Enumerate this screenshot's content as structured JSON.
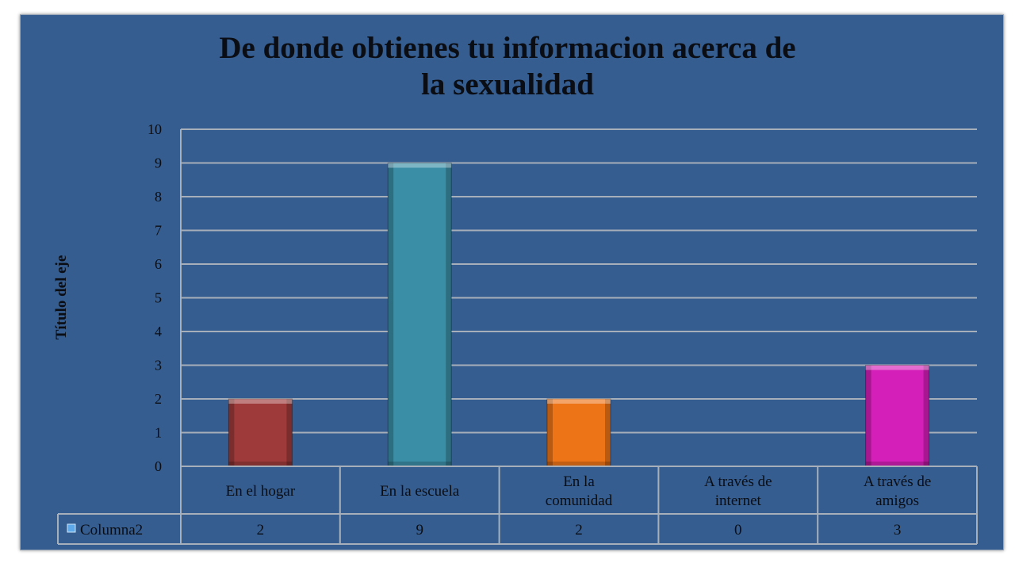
{
  "chart_data": {
    "type": "bar",
    "title_lines": [
      "De donde obtienes tu informacion acerca de",
      "la sexualidad"
    ],
    "ylabel": "Título del eje",
    "xlabel": "",
    "categories": [
      "En el hogar",
      "En la escuela",
      "En la comunidad",
      "A través de internet",
      "A través de amigos"
    ],
    "category_label_lines": [
      [
        "En el hogar"
      ],
      [
        "En la escuela"
      ],
      [
        "En la",
        "comunidad"
      ],
      [
        "A través de",
        "internet"
      ],
      [
        "A través de",
        "amigos"
      ]
    ],
    "series": [
      {
        "name": "Columna2",
        "values": [
          2,
          9,
          2,
          0,
          3
        ]
      }
    ],
    "data_table_values": [
      "2",
      "9",
      "2",
      "0",
      "3"
    ],
    "bar_colors": [
      "#9e3a3a",
      "#3a8ea6",
      "#ee7418",
      "#7f7f7f",
      "#d41fb8"
    ],
    "yticks": [
      0,
      1,
      2,
      3,
      4,
      5,
      6,
      7,
      8,
      9,
      10
    ],
    "ylim": [
      0,
      10
    ],
    "grid": true,
    "legend": "data-table-left"
  },
  "colors": {
    "chart_background": "#355d8f",
    "gridline": "#a7b0ba",
    "text": "#0a0d14",
    "legend_key": "#5ea9ea"
  }
}
